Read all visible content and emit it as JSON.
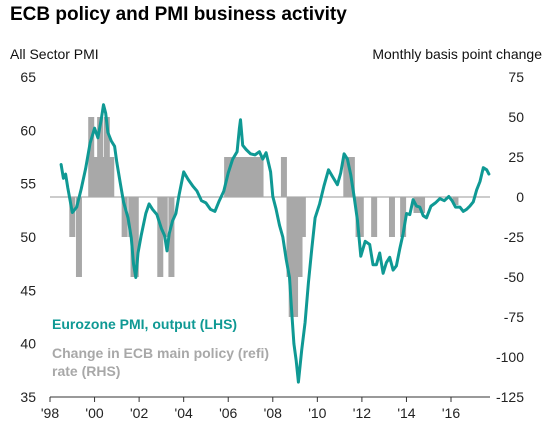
{
  "chart_data": {
    "type": "line",
    "title": "ECB policy and PMI business activity",
    "left_axis_title": "All Sector PMI",
    "right_axis_title": "Monthly  basis point change",
    "left_ylim": [
      35,
      65
    ],
    "left_ticks": [
      "65",
      "60",
      "55",
      "50",
      "45",
      "40",
      "35"
    ],
    "right_ylim": [
      -125,
      75
    ],
    "right_ticks": [
      "75",
      "50",
      "25",
      "0",
      "-25",
      "-50",
      "-75",
      "-100",
      "-125"
    ],
    "xlim": [
      1998.0,
      2017.75
    ],
    "x_ticks": [
      {
        "value": 1998,
        "label": "'98"
      },
      {
        "value": 2000,
        "label": "'00"
      },
      {
        "value": 2002,
        "label": "'02"
      },
      {
        "value": 2004,
        "label": "'04"
      },
      {
        "value": 2006,
        "label": "'06"
      },
      {
        "value": 2008,
        "label": "'08"
      },
      {
        "value": 2010,
        "label": "'10"
      },
      {
        "value": 2012,
        "label": "'12"
      },
      {
        "value": 2014,
        "label": "'14"
      },
      {
        "value": 2016,
        "label": "'16"
      }
    ],
    "grid": false,
    "series": [
      {
        "name": "Eurozone PMI, output (LHS)",
        "axis": "left",
        "type": "line",
        "color": "#0f9994",
        "points": [
          [
            1998.5,
            56.8
          ],
          [
            1998.6,
            55.5
          ],
          [
            1998.7,
            55.9
          ],
          [
            1998.8,
            54.6
          ],
          [
            1999.0,
            52.3
          ],
          [
            1999.2,
            52.8
          ],
          [
            1999.4,
            54.5
          ],
          [
            1999.6,
            56.4
          ],
          [
            1999.8,
            58.8
          ],
          [
            2000.0,
            60.2
          ],
          [
            2000.15,
            59.3
          ],
          [
            2000.3,
            61.0
          ],
          [
            2000.4,
            62.4
          ],
          [
            2000.5,
            61.6
          ],
          [
            2000.6,
            59.8
          ],
          [
            2000.75,
            59.0
          ],
          [
            2000.9,
            58.5
          ],
          [
            2001.0,
            57.0
          ],
          [
            2001.15,
            55.1
          ],
          [
            2001.3,
            53.3
          ],
          [
            2001.5,
            51.8
          ],
          [
            2001.65,
            49.9
          ],
          [
            2001.75,
            47.5
          ],
          [
            2001.85,
            46.2
          ],
          [
            2001.95,
            48.5
          ],
          [
            2002.1,
            50.2
          ],
          [
            2002.3,
            52.2
          ],
          [
            2002.45,
            53.1
          ],
          [
            2002.6,
            52.6
          ],
          [
            2002.8,
            52.1
          ],
          [
            2003.0,
            50.8
          ],
          [
            2003.15,
            50.1
          ],
          [
            2003.25,
            48.7
          ],
          [
            2003.35,
            50.3
          ],
          [
            2003.5,
            51.5
          ],
          [
            2003.65,
            52.2
          ],
          [
            2003.8,
            54.0
          ],
          [
            2004.0,
            56.1
          ],
          [
            2004.2,
            55.4
          ],
          [
            2004.4,
            54.8
          ],
          [
            2004.6,
            54.3
          ],
          [
            2004.8,
            53.4
          ],
          [
            2005.0,
            53.2
          ],
          [
            2005.2,
            52.6
          ],
          [
            2005.4,
            52.4
          ],
          [
            2005.6,
            53.4
          ],
          [
            2005.8,
            54.3
          ],
          [
            2006.0,
            56.0
          ],
          [
            2006.2,
            57.3
          ],
          [
            2006.4,
            58.0
          ],
          [
            2006.5,
            60.2
          ],
          [
            2006.55,
            61.0
          ],
          [
            2006.65,
            58.6
          ],
          [
            2006.8,
            58.2
          ],
          [
            2007.0,
            57.8
          ],
          [
            2007.2,
            57.7
          ],
          [
            2007.4,
            58.0
          ],
          [
            2007.55,
            57.3
          ],
          [
            2007.7,
            57.9
          ],
          [
            2007.9,
            56.1
          ],
          [
            2008.0,
            53.8
          ],
          [
            2008.15,
            52.6
          ],
          [
            2008.3,
            51.1
          ],
          [
            2008.45,
            50.0
          ],
          [
            2008.6,
            47.9
          ],
          [
            2008.75,
            46.2
          ],
          [
            2008.85,
            43.0
          ],
          [
            2008.95,
            40.0
          ],
          [
            2009.05,
            38.4
          ],
          [
            2009.15,
            36.4
          ],
          [
            2009.3,
            39.4
          ],
          [
            2009.45,
            42.0
          ],
          [
            2009.6,
            45.7
          ],
          [
            2009.75,
            48.9
          ],
          [
            2009.9,
            51.8
          ],
          [
            2010.1,
            53.1
          ],
          [
            2010.3,
            54.8
          ],
          [
            2010.5,
            56.3
          ],
          [
            2010.7,
            55.6
          ],
          [
            2010.9,
            54.9
          ],
          [
            2011.05,
            56.0
          ],
          [
            2011.2,
            57.8
          ],
          [
            2011.35,
            57.3
          ],
          [
            2011.5,
            55.8
          ],
          [
            2011.65,
            53.8
          ],
          [
            2011.8,
            51.6
          ],
          [
            2011.95,
            48.2
          ],
          [
            2012.15,
            49.6
          ],
          [
            2012.35,
            49.3
          ],
          [
            2012.5,
            47.4
          ],
          [
            2012.65,
            47.4
          ],
          [
            2012.8,
            48.5
          ],
          [
            2012.95,
            46.6
          ],
          [
            2013.1,
            47.6
          ],
          [
            2013.25,
            48.1
          ],
          [
            2013.4,
            46.9
          ],
          [
            2013.55,
            47.3
          ],
          [
            2013.7,
            48.9
          ],
          [
            2013.85,
            50.3
          ],
          [
            2014.0,
            52.2
          ],
          [
            2014.15,
            52.1
          ],
          [
            2014.3,
            53.5
          ],
          [
            2014.45,
            52.9
          ],
          [
            2014.6,
            52.8
          ],
          [
            2014.75,
            52.0
          ],
          [
            2014.9,
            51.8
          ],
          [
            2015.1,
            52.9
          ],
          [
            2015.3,
            53.2
          ],
          [
            2015.5,
            53.6
          ],
          [
            2015.7,
            53.4
          ],
          [
            2015.9,
            53.8
          ],
          [
            2016.05,
            53.4
          ],
          [
            2016.2,
            52.8
          ],
          [
            2016.4,
            52.8
          ],
          [
            2016.55,
            52.4
          ],
          [
            2016.7,
            52.6
          ],
          [
            2016.85,
            52.9
          ],
          [
            2017.0,
            53.3
          ],
          [
            2017.15,
            54.4
          ],
          [
            2017.3,
            55.2
          ],
          [
            2017.45,
            56.5
          ],
          [
            2017.6,
            56.3
          ],
          [
            2017.7,
            55.9
          ]
        ]
      },
      {
        "name": "Change in ECB main policy (refi) rate (RHS)",
        "axis": "right",
        "type": "bar",
        "color": "#a8a8a8",
        "points": [
          [
            1999.0,
            -25
          ],
          [
            1999.3,
            -50
          ],
          [
            1999.85,
            50
          ],
          [
            2000.0,
            25
          ],
          [
            2000.15,
            25
          ],
          [
            2000.25,
            50
          ],
          [
            2000.35,
            25
          ],
          [
            2000.45,
            25
          ],
          [
            2000.55,
            50
          ],
          [
            2000.65,
            25
          ],
          [
            2000.75,
            25
          ],
          [
            2001.35,
            -25
          ],
          [
            2001.65,
            -25
          ],
          [
            2001.75,
            -50
          ],
          [
            2001.85,
            -50
          ],
          [
            2002.95,
            -50
          ],
          [
            2003.15,
            -25
          ],
          [
            2003.45,
            -50
          ],
          [
            2005.95,
            25
          ],
          [
            2006.2,
            25
          ],
          [
            2006.45,
            25
          ],
          [
            2006.6,
            25
          ],
          [
            2006.8,
            25
          ],
          [
            2006.95,
            25
          ],
          [
            2007.2,
            25
          ],
          [
            2007.45,
            25
          ],
          [
            2008.5,
            25
          ],
          [
            2008.75,
            -50
          ],
          [
            2008.85,
            -75
          ],
          [
            2009.0,
            -75
          ],
          [
            2009.2,
            -50
          ],
          [
            2009.3,
            -25
          ],
          [
            2009.35,
            -25
          ],
          [
            2011.3,
            25
          ],
          [
            2011.55,
            25
          ],
          [
            2011.85,
            -25
          ],
          [
            2011.95,
            -25
          ],
          [
            2012.55,
            -25
          ],
          [
            2013.35,
            -25
          ],
          [
            2013.85,
            -25
          ],
          [
            2014.45,
            -10
          ],
          [
            2014.7,
            -10
          ],
          [
            2016.2,
            -5
          ]
        ]
      }
    ],
    "legend": [
      {
        "label": "Eurozone PMI, output  (LHS)",
        "color": "#0f9994"
      },
      {
        "label": "Change in ECB main policy (refi) rate (RHS)",
        "color": "#a8a8a8"
      }
    ],
    "legend_position": "bottom-left"
  }
}
